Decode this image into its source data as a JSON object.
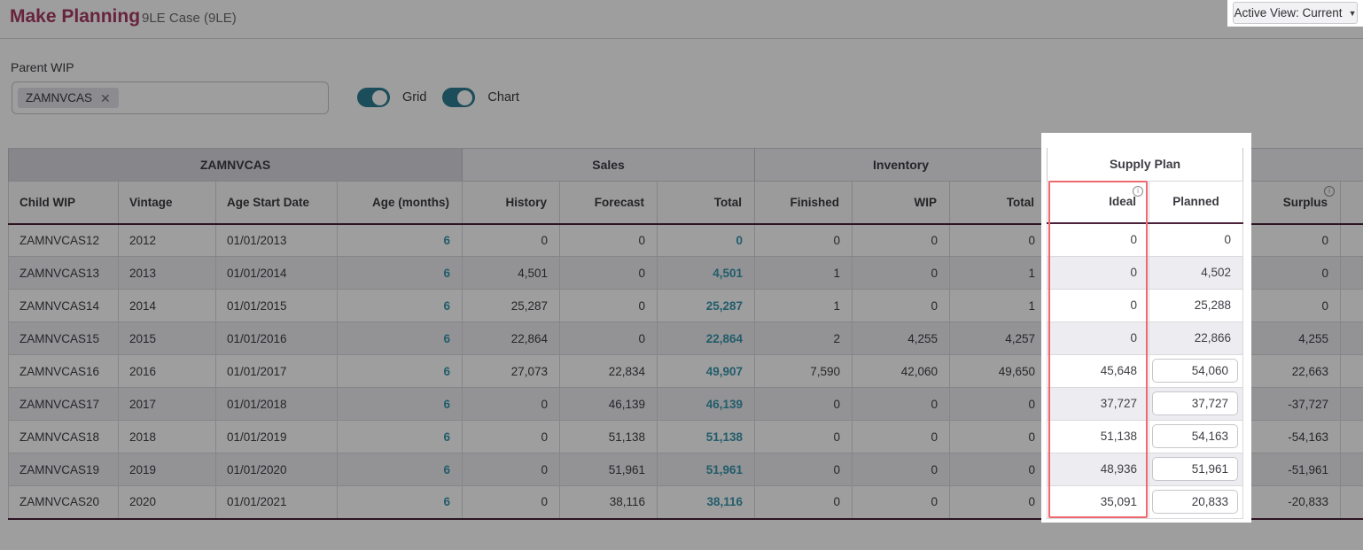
{
  "header": {
    "title": "Make Planning",
    "subtitle": "9LE Case (9LE)",
    "active_view_label": "Active View: Current"
  },
  "filters": {
    "parent_wip_label": "Parent WIP",
    "parent_wip_chip": "ZAMNVCAS",
    "toggles": [
      {
        "label": "Grid",
        "on": true
      },
      {
        "label": "Chart",
        "on": true
      }
    ]
  },
  "table": {
    "groups": [
      {
        "label": "ZAMNVCAS",
        "span": 4
      },
      {
        "label": "Sales",
        "span": 3
      },
      {
        "label": "Inventory",
        "span": 3
      },
      {
        "label": "Supply Plan",
        "span": 2
      },
      {
        "label": "",
        "span": 2
      }
    ],
    "columns": [
      {
        "label": "Child WIP"
      },
      {
        "label": "Vintage"
      },
      {
        "label": "Age Start Date"
      },
      {
        "label": "Age (months)"
      },
      {
        "label": "History"
      },
      {
        "label": "Forecast"
      },
      {
        "label": "Total"
      },
      {
        "label": "Finished"
      },
      {
        "label": "WIP"
      },
      {
        "label": "Total"
      },
      {
        "label": "Ideal",
        "info": true
      },
      {
        "label": "Planned"
      },
      {
        "label": "Surplus",
        "info": true
      },
      {
        "label": ""
      }
    ],
    "rows": [
      {
        "child_wip": "ZAMNVCAS12",
        "vintage": "2012",
        "age_start_date": "01/01/2013",
        "age_months": "6",
        "history": "0",
        "forecast": "0",
        "sales_total": "0",
        "finished": "0",
        "wip": "0",
        "inventory_total": "0",
        "ideal": "0",
        "planned": "0",
        "planned_editable": false,
        "surplus": "0"
      },
      {
        "child_wip": "ZAMNVCAS13",
        "vintage": "2013",
        "age_start_date": "01/01/2014",
        "age_months": "6",
        "history": "4,501",
        "forecast": "0",
        "sales_total": "4,501",
        "finished": "1",
        "wip": "0",
        "inventory_total": "1",
        "ideal": "0",
        "planned": "4,502",
        "planned_editable": false,
        "surplus": "0"
      },
      {
        "child_wip": "ZAMNVCAS14",
        "vintage": "2014",
        "age_start_date": "01/01/2015",
        "age_months": "6",
        "history": "25,287",
        "forecast": "0",
        "sales_total": "25,287",
        "finished": "1",
        "wip": "0",
        "inventory_total": "1",
        "ideal": "0",
        "planned": "25,288",
        "planned_editable": false,
        "surplus": "0"
      },
      {
        "child_wip": "ZAMNVCAS15",
        "vintage": "2015",
        "age_start_date": "01/01/2016",
        "age_months": "6",
        "history": "22,864",
        "forecast": "0",
        "sales_total": "22,864",
        "finished": "2",
        "wip": "4,255",
        "inventory_total": "4,257",
        "ideal": "0",
        "planned": "22,866",
        "planned_editable": false,
        "surplus": "4,255"
      },
      {
        "child_wip": "ZAMNVCAS16",
        "vintage": "2016",
        "age_start_date": "01/01/2017",
        "age_months": "6",
        "history": "27,073",
        "forecast": "22,834",
        "sales_total": "49,907",
        "finished": "7,590",
        "wip": "42,060",
        "inventory_total": "49,650",
        "ideal": "45,648",
        "planned": "54,060",
        "planned_editable": true,
        "surplus": "22,663"
      },
      {
        "child_wip": "ZAMNVCAS17",
        "vintage": "2017",
        "age_start_date": "01/01/2018",
        "age_months": "6",
        "history": "0",
        "forecast": "46,139",
        "sales_total": "46,139",
        "finished": "0",
        "wip": "0",
        "inventory_total": "0",
        "ideal": "37,727",
        "planned": "37,727",
        "planned_editable": true,
        "surplus": "-37,727"
      },
      {
        "child_wip": "ZAMNVCAS18",
        "vintage": "2018",
        "age_start_date": "01/01/2019",
        "age_months": "6",
        "history": "0",
        "forecast": "51,138",
        "sales_total": "51,138",
        "finished": "0",
        "wip": "0",
        "inventory_total": "0",
        "ideal": "51,138",
        "planned": "54,163",
        "planned_editable": true,
        "surplus": "-54,163"
      },
      {
        "child_wip": "ZAMNVCAS19",
        "vintage": "2019",
        "age_start_date": "01/01/2020",
        "age_months": "6",
        "history": "0",
        "forecast": "51,961",
        "sales_total": "51,961",
        "finished": "0",
        "wip": "0",
        "inventory_total": "0",
        "ideal": "48,936",
        "planned": "51,961",
        "planned_editable": true,
        "surplus": "-51,961"
      },
      {
        "child_wip": "ZAMNVCAS20",
        "vintage": "2020",
        "age_start_date": "01/01/2021",
        "age_months": "6",
        "history": "0",
        "forecast": "38,116",
        "sales_total": "38,116",
        "finished": "0",
        "wip": "0",
        "inventory_total": "0",
        "ideal": "35,091",
        "planned": "20,833",
        "planned_editable": true,
        "surplus": "-20,833"
      }
    ]
  },
  "spotlight": {
    "highlighted_group": "Supply Plan",
    "highlighted_column": "Ideal"
  },
  "colors": {
    "brand_maroon": "#a93963",
    "accent_teal": "#2e7d92",
    "link_teal": "#3796ad",
    "header_underline": "#4a2139",
    "highlight_red": "#ee6a70",
    "group_dark_bg": "#d9d9e0",
    "group_light_bg": "#f1f1f4",
    "row_alt_bg": "#ededf1",
    "dim_overlay": "rgba(0,0,0,0.38)"
  }
}
